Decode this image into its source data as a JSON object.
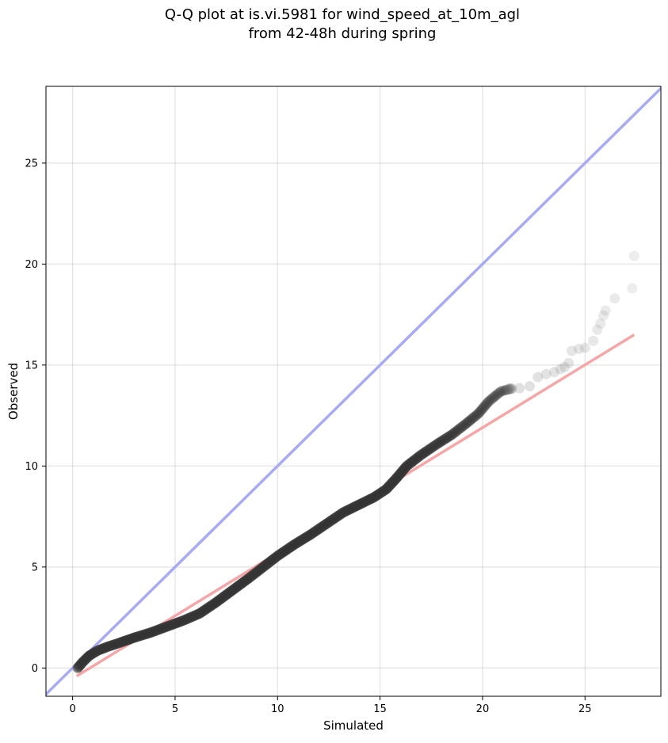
{
  "chart_data": {
    "type": "scatter",
    "title_line1": "Q-Q plot at is.vi.5981 for wind_speed_at_10m_agl",
    "title_line2": "from 42-48h during spring",
    "xlabel": "Simulated",
    "ylabel": "Observed",
    "xlim": [
      -1.3,
      28.7
    ],
    "ylim": [
      -1.4,
      28.8
    ],
    "x_ticks": [
      0,
      5,
      10,
      15,
      20,
      25
    ],
    "y_ticks": [
      0,
      5,
      10,
      15,
      20,
      25
    ],
    "x_tick_labels": [
      "0",
      "5",
      "10",
      "15",
      "20",
      "25"
    ],
    "y_tick_labels": [
      "0",
      "5",
      "10",
      "15",
      "20",
      "25"
    ],
    "grid": true,
    "identity_line": {
      "color": "#a9abf2"
    },
    "fit_line": {
      "x": [
        0.2,
        27.4
      ],
      "y": [
        -0.4,
        16.5
      ],
      "color": "#f5a6a6"
    },
    "point_color": "#333333",
    "curve": [
      [
        0.25,
        0.0
      ],
      [
        0.5,
        0.3
      ],
      [
        0.8,
        0.6
      ],
      [
        1.2,
        0.85
      ],
      [
        1.7,
        1.05
      ],
      [
        2.3,
        1.25
      ],
      [
        3.0,
        1.5
      ],
      [
        3.8,
        1.75
      ],
      [
        4.6,
        2.05
      ],
      [
        5.4,
        2.35
      ],
      [
        6.2,
        2.7
      ],
      [
        7.0,
        3.25
      ],
      [
        7.8,
        3.85
      ],
      [
        8.6,
        4.45
      ],
      [
        9.3,
        5.0
      ],
      [
        10.0,
        5.55
      ],
      [
        10.8,
        6.1
      ],
      [
        11.6,
        6.6
      ],
      [
        12.4,
        7.15
      ],
      [
        13.2,
        7.7
      ],
      [
        14.0,
        8.1
      ],
      [
        14.7,
        8.45
      ],
      [
        15.3,
        8.85
      ],
      [
        15.8,
        9.4
      ],
      [
        16.3,
        10.0
      ],
      [
        17.0,
        10.55
      ],
      [
        17.8,
        11.1
      ],
      [
        18.5,
        11.55
      ],
      [
        19.2,
        12.1
      ],
      [
        19.8,
        12.6
      ],
      [
        20.3,
        13.2
      ],
      [
        20.9,
        13.7
      ],
      [
        21.5,
        13.85
      ]
    ],
    "tail_points": [
      [
        21.3,
        13.85
      ],
      [
        21.8,
        13.85
      ],
      [
        22.3,
        13.95
      ],
      [
        22.7,
        14.4
      ],
      [
        23.1,
        14.55
      ],
      [
        23.5,
        14.65
      ],
      [
        23.8,
        14.8
      ],
      [
        24.0,
        14.9
      ],
      [
        24.2,
        15.1
      ],
      [
        24.35,
        15.7
      ],
      [
        24.7,
        15.8
      ],
      [
        25.0,
        15.85
      ],
      [
        25.4,
        16.2
      ],
      [
        25.6,
        16.75
      ],
      [
        25.75,
        17.05
      ],
      [
        25.9,
        17.45
      ],
      [
        26.0,
        17.7
      ],
      [
        26.45,
        18.3
      ],
      [
        27.3,
        18.8
      ],
      [
        27.4,
        20.4
      ]
    ]
  }
}
